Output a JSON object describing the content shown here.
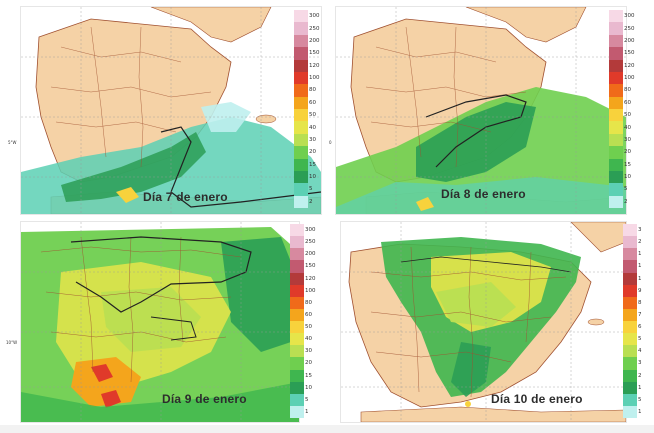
{
  "panels": [
    {
      "id": "p1",
      "label": "Día 7 de enero",
      "legend_ticks": [
        "300",
        "250",
        "200",
        "150",
        "120",
        "100",
        "80",
        "60",
        "50",
        "40",
        "30",
        "20",
        "15",
        "10",
        "5",
        "2"
      ],
      "side_label": "5°W"
    },
    {
      "id": "p2",
      "label": "Día 8 de enero",
      "legend_ticks": [
        "300",
        "250",
        "200",
        "150",
        "120",
        "100",
        "80",
        "60",
        "50",
        "40",
        "30",
        "20",
        "15",
        "10",
        "5",
        "2"
      ],
      "side_label": "0"
    },
    {
      "id": "p3",
      "label": "Día 9 de enero",
      "legend_ticks": [
        "300",
        "250",
        "200",
        "150",
        "120",
        "100",
        "80",
        "60",
        "50",
        "40",
        "30",
        "20",
        "15",
        "10",
        "5",
        "1"
      ],
      "side_label": "10°W"
    },
    {
      "id": "p4",
      "label": "Día 10 de enero",
      "legend_ticks": [
        "3",
        "2",
        "1",
        "1",
        "1",
        "9",
        "8",
        "7",
        "6",
        "5",
        "4",
        "3",
        "2",
        "1",
        "5",
        "1"
      ],
      "side_label": ""
    }
  ],
  "legend_colors": [
    "#f7d9e6",
    "#e9b9cf",
    "#d7899f",
    "#c25a70",
    "#b33a3a",
    "#e03a2a",
    "#f06a1a",
    "#f4a51c",
    "#f8d23c",
    "#e6e54a",
    "#b9df52",
    "#6fcf4f",
    "#3fb64f",
    "#2b9e55",
    "#5cd0b4",
    "#bff0ee"
  ],
  "map_colors": {
    "sea": "#ffffff",
    "land": "#f5d2a6",
    "border": "#a05030",
    "contour": "#222222",
    "grid": "#9a9a9a"
  }
}
